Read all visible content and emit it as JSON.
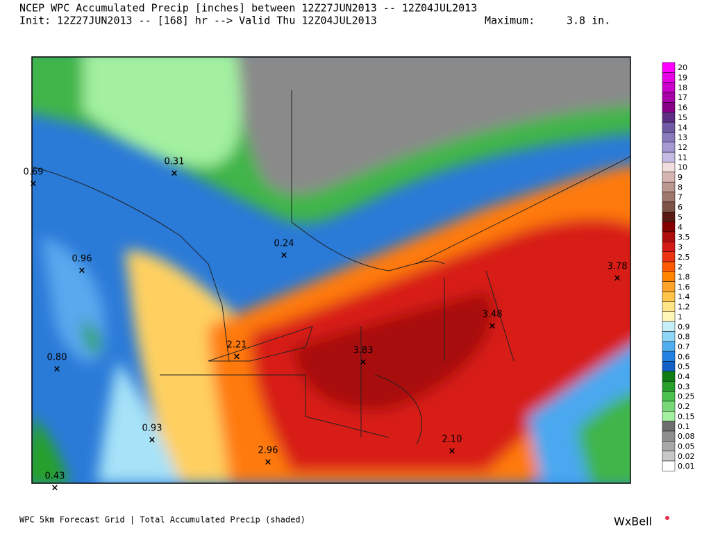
{
  "header": {
    "line1": "NCEP WPC Accumulated Precip [inches] between 12Z27JUN2013 -- 12Z04JUL2013",
    "line2": "Init: 12Z27JUN2013 -- [168] hr --> Valid Thu 12Z04JUL2013",
    "maximum_label": "Maximum:",
    "maximum_value": "3.8 in."
  },
  "points": [
    "0.69",
    "0.31",
    "0.24",
    "0.96",
    "2.21",
    "3.83",
    "3.48",
    "3.78",
    "0.80",
    "0.93",
    "2.96",
    "2.10",
    "0.43"
  ],
  "legend": [
    {
      "label": "20",
      "color": "#ff00ff"
    },
    {
      "label": "19",
      "color": "#e600e6"
    },
    {
      "label": "18",
      "color": "#cc00cc"
    },
    {
      "label": "17",
      "color": "#a800a8"
    },
    {
      "label": "16",
      "color": "#880088"
    },
    {
      "label": "15",
      "color": "#5e2d86"
    },
    {
      "label": "14",
      "color": "#6f5aa6"
    },
    {
      "label": "13",
      "color": "#8a7bbd"
    },
    {
      "label": "12",
      "color": "#a699d2"
    },
    {
      "label": "11",
      "color": "#c3bbe4"
    },
    {
      "label": "10",
      "color": "#f2dede"
    },
    {
      "label": "9",
      "color": "#d6b6b1"
    },
    {
      "label": "8",
      "color": "#bb978f"
    },
    {
      "label": "7",
      "color": "#9e776d"
    },
    {
      "label": "6",
      "color": "#7d5348"
    },
    {
      "label": "5",
      "color": "#5a1a14"
    },
    {
      "label": "4",
      "color": "#870000"
    },
    {
      "label": "3.5",
      "color": "#b00e0e"
    },
    {
      "label": "3",
      "color": "#d41a16"
    },
    {
      "label": "2.5",
      "color": "#ec3312"
    },
    {
      "label": "2",
      "color": "#ff5a00"
    },
    {
      "label": "1.8",
      "color": "#ff8400"
    },
    {
      "label": "1.6",
      "color": "#ffa428"
    },
    {
      "label": "1.4",
      "color": "#ffc548"
    },
    {
      "label": "1.2",
      "color": "#ffe488"
    },
    {
      "label": "1",
      "color": "#fff7b8"
    },
    {
      "label": "0.9",
      "color": "#c6eef8"
    },
    {
      "label": "0.8",
      "color": "#8ed6f8"
    },
    {
      "label": "0.7",
      "color": "#50aef0"
    },
    {
      "label": "0.6",
      "color": "#2282e2"
    },
    {
      "label": "0.5",
      "color": "#1060c8"
    },
    {
      "label": "0.4",
      "color": "#0e7e12"
    },
    {
      "label": "0.3",
      "color": "#26a02a"
    },
    {
      "label": "0.25",
      "color": "#4cc04e"
    },
    {
      "label": "0.2",
      "color": "#78d878"
    },
    {
      "label": "0.15",
      "color": "#a2f0a0"
    },
    {
      "label": "0.1",
      "color": "#6e6e6e"
    },
    {
      "label": "0.08",
      "color": "#8e8e8e"
    },
    {
      "label": "0.05",
      "color": "#a8a8a8"
    },
    {
      "label": "0.02",
      "color": "#c8c8c8"
    },
    {
      "label": "0.01",
      "color": "#ffffff"
    }
  ],
  "footer": {
    "caption": "WPC 5km Forecast Grid | Total Accumulated Precip (shaded)",
    "brand": "WxBell"
  }
}
